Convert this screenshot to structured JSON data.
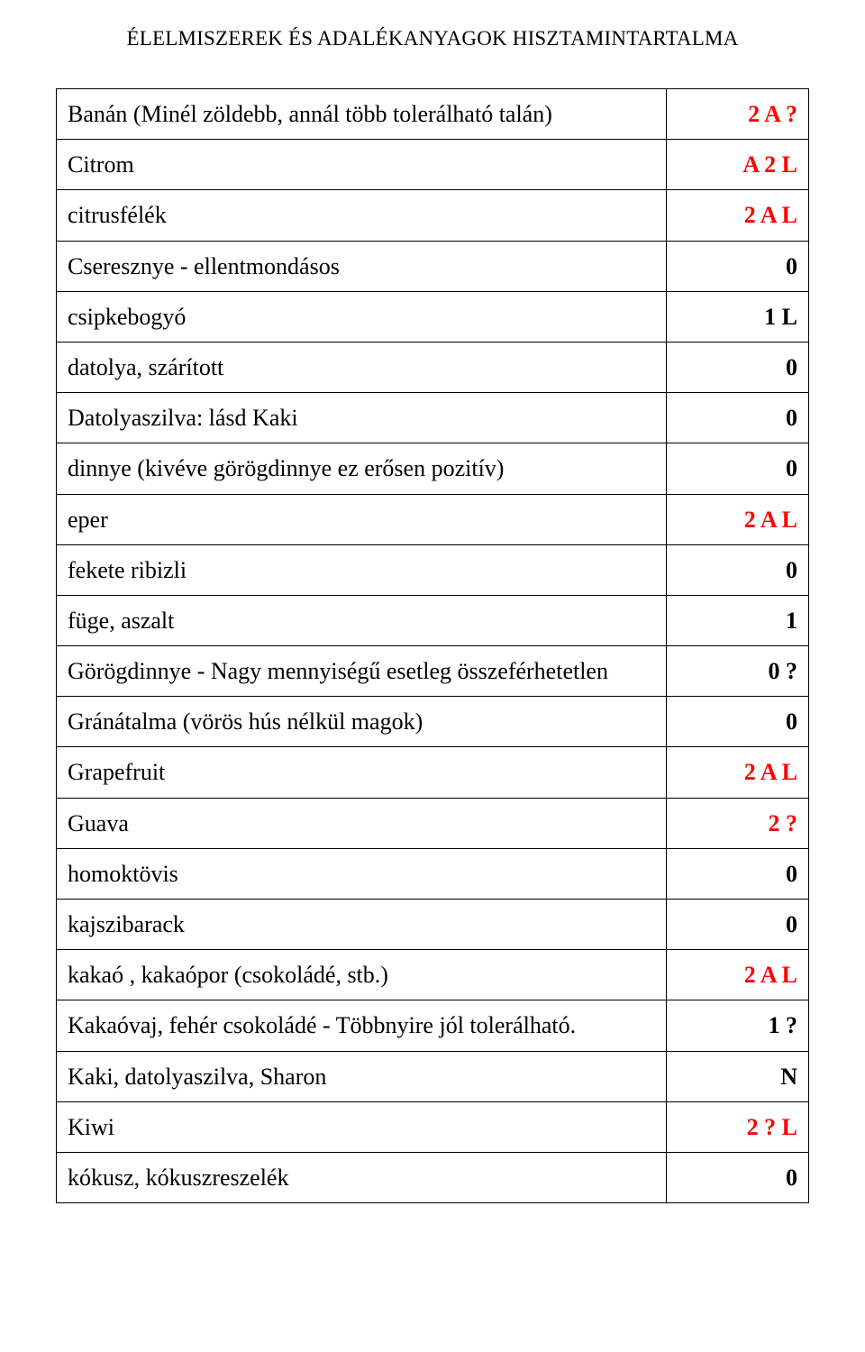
{
  "header_title": "ÉLELMISZEREK ÉS ADALÉKANYAGOK HISZTAMINTARTALMA",
  "value_red_color": "#ff0000",
  "value_black_color": "#000000",
  "rows": [
    {
      "name": "Banán (Minél zöldebb, annál több tolerálható talán)",
      "value": "2 A ?",
      "red": true
    },
    {
      "name": "Citrom",
      "value": "A 2 L",
      "red": true
    },
    {
      "name": "citrusfélék",
      "value": "2 A L",
      "red": true
    },
    {
      "name": "Cseresznye - ellentmondásos",
      "value": "0",
      "red": false
    },
    {
      "name": "csipkebogyó",
      "value": "1 L",
      "red": false
    },
    {
      "name": "datolya, szárított",
      "value": "0",
      "red": false
    },
    {
      "name": "Datolyaszilva: lásd Kaki",
      "value": "0",
      "red": false
    },
    {
      "name": "dinnye (kivéve görögdinnye ez erősen pozitív)",
      "value": "0",
      "red": false
    },
    {
      "name": "eper",
      "value": "2 A L",
      "red": true
    },
    {
      "name": "fekete ribizli",
      "value": "0",
      "red": false
    },
    {
      "name": "füge, aszalt",
      "value": "1",
      "red": false
    },
    {
      "name": "Görögdinnye - Nagy mennyiségű esetleg összeférhetetlen",
      "value": "0 ?",
      "red": false
    },
    {
      "name": "Gránátalma (vörös hús nélkül magok)",
      "value": "0",
      "red": false
    },
    {
      "name": "Grapefruit",
      "value": "2 A L",
      "red": true
    },
    {
      "name": "Guava",
      "value": "2 ?",
      "red": true
    },
    {
      "name": "homoktövis",
      "value": "0",
      "red": false
    },
    {
      "name": "kajszibarack",
      "value": "0",
      "red": false
    },
    {
      "name": "kakaó , kakaópor (csokoládé, stb.)",
      "value": "2 A L",
      "red": true
    },
    {
      "name": "Kakaóvaj, fehér csokoládé - Többnyire jól tolerálható.",
      "value": "1 ?",
      "red": false
    },
    {
      "name": "Kaki, datolyaszilva, Sharon",
      "value": "N",
      "red": false
    },
    {
      "name": "Kiwi",
      "value": "2 ? L",
      "red": true
    },
    {
      "name": "kókusz, kókuszreszelék",
      "value": "0",
      "red": false
    }
  ]
}
